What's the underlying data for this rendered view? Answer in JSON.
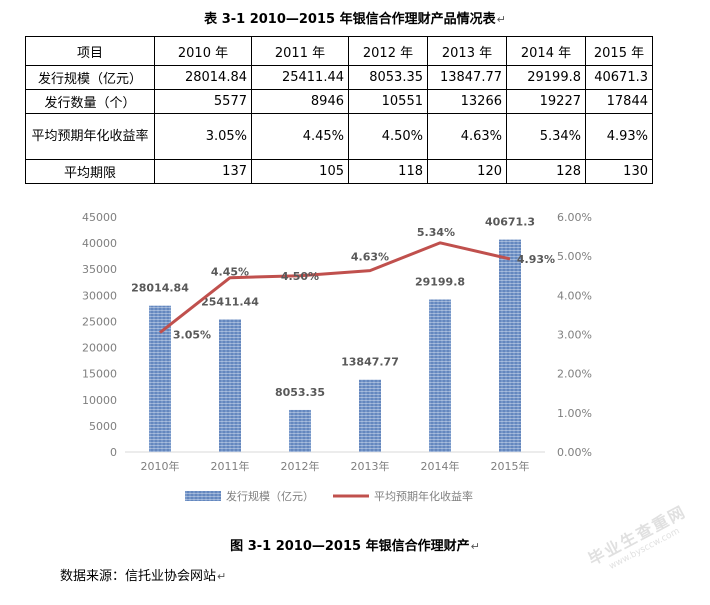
{
  "table": {
    "title": "表 3-1 2010—2015 年银信合作理财产品情况表",
    "header": [
      "项目",
      "2010 年",
      "2011 年",
      "2012 年",
      "2013 年",
      "2014 年",
      "2015 年"
    ],
    "rows": [
      {
        "label": "发行规模（亿元）",
        "cells": [
          "28014.84",
          "25411.44",
          "8053.35",
          "13847.77",
          "29199.8",
          "40671.3"
        ]
      },
      {
        "label": "发行数量（个）",
        "cells": [
          "5577",
          "8946",
          "10551",
          "13266",
          "19227",
          "17844"
        ]
      },
      {
        "label": "平均预期年化收益率",
        "cells": [
          "3.05%",
          "4.45%",
          "4.50%",
          "4.63%",
          "5.34%",
          "4.93%"
        ]
      },
      {
        "label": "平均期限",
        "cells": [
          "137",
          "105",
          "118",
          "120",
          "128",
          "130"
        ]
      }
    ]
  },
  "chart_data": {
    "type": "bar",
    "categories": [
      "2010年",
      "2011年",
      "2012年",
      "2013年",
      "2014年",
      "2015年"
    ],
    "series": [
      {
        "name": "发行规模（亿元）",
        "type": "bar",
        "axis": "left",
        "values": [
          28014.84,
          25411.44,
          8053.35,
          13847.77,
          29199.8,
          40671.3
        ],
        "labels": [
          "28014.84",
          "25411.44",
          "8053.35",
          "13847.77",
          "29199.8",
          "40671.3"
        ],
        "color": "#7f9fcf"
      },
      {
        "name": "平均预期年化收益率",
        "type": "line",
        "axis": "right",
        "values": [
          3.05,
          4.45,
          4.5,
          4.63,
          5.34,
          4.93
        ],
        "labels": [
          "3.05%",
          "4.45%",
          "4.50%",
          "4.63%",
          "5.34%",
          "4.93%"
        ],
        "color": "#c0504d"
      }
    ],
    "y_left": {
      "range": [
        0,
        45000
      ],
      "ticks": [
        "0",
        "5000",
        "10000",
        "15000",
        "20000",
        "25000",
        "30000",
        "35000",
        "40000",
        "45000"
      ]
    },
    "y_right": {
      "range": [
        0,
        6
      ],
      "ticks": [
        "0.00%",
        "1.00%",
        "2.00%",
        "3.00%",
        "4.00%",
        "5.00%",
        "6.00%"
      ]
    },
    "grid": false,
    "legend": "bottom"
  },
  "figure": {
    "caption": "图 3-1 2010—2015 年银信合作理财产"
  },
  "source": {
    "text": "数据来源：信托业协会网站"
  },
  "watermark": {
    "main": "毕业生查重网",
    "sub": "www.bysccw.com"
  }
}
